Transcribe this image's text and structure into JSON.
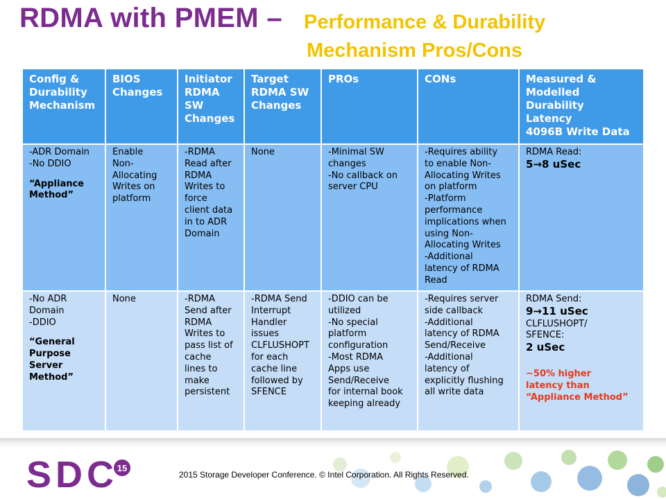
{
  "title": {
    "main": "RDMA with PMEM –",
    "sub_line1": "Performance & Durability",
    "sub_line2": "Mechanism Pros/Cons"
  },
  "table": {
    "headers": [
      "Config &\nDurability\nMechanism",
      "BIOS\nChanges",
      "Initiator\nRDMA\nSW\nChanges",
      "Target\nRDMA SW\nChanges",
      "PROs",
      "CONs",
      "Measured &\nModelled\nDurability\nLatency\n4096B Write Data"
    ],
    "row1": {
      "config": "-ADR Domain\n-No DDIO",
      "config_method": "“Appliance\nMethod”",
      "bios": "Enable\nNon-\nAllocating\nWrites on\nplatform",
      "initiator": "-RDMA\nRead after\nRDMA\nWrites to\nforce\nclient data\nin to ADR\nDomain",
      "target": "None",
      "pros": "-Minimal SW\nchanges\n-No callback on\nserver CPU",
      "cons": "-Requires ability\nto enable Non-\nAllocating Writes\non platform\n-Platform\nperformance\nimplications when\nusing Non-\nAllocating Writes\n-Additional\nlatency of RDMA\nRead",
      "latency_label": "RDMA Read:",
      "latency_value": "5→8 uSec"
    },
    "row2": {
      "config": "-No ADR\nDomain\n-DDIO",
      "config_method": "“General\nPurpose\nServer\nMethod”",
      "bios": "None",
      "initiator": "-RDMA\nSend after\nRDMA\nWrites to\npass list of\ncache\nlines to\nmake\npersistent",
      "target": "-RDMA Send\nInterrupt\nHandler\nissues\nCLFLUSHOPT\nfor each\ncache line\nfollowed by\nSFENCE",
      "pros": "-DDIO can be\nutilized\n-No special\nplatform\nconfiguration\n-Most RDMA\nApps use\nSend/Receive\nfor internal book\nkeeping already",
      "cons": "-Requires server\nside callback\n-Additional\nlatency of RDMA\nSend/Receive\n-Additional\nlatency of\nexplicitly flushing\nall write data",
      "latency_label1": "RDMA Send:",
      "latency_value1": "9→11 uSec",
      "latency_label2": "CLFLUSHOPT/\nSFENCE:",
      "latency_value2": "2 uSec",
      "latency_note": "~50% higher\nlatency than\n“Appliance Method”"
    }
  },
  "footer": {
    "logo_text": "SDC",
    "logo_badge": "15",
    "copyright": "2015 Storage  Developer Conference. © Intel Corporation.  All Rights Reserved."
  },
  "colors": {
    "title_purple": "#7b2c8e",
    "subtitle_yellow": "#f2c300",
    "header_blue": "#3f9ae8",
    "row1_blue": "#86bdf3",
    "row2_blue": "#c5ddf7",
    "note_red": "#e8391b"
  }
}
